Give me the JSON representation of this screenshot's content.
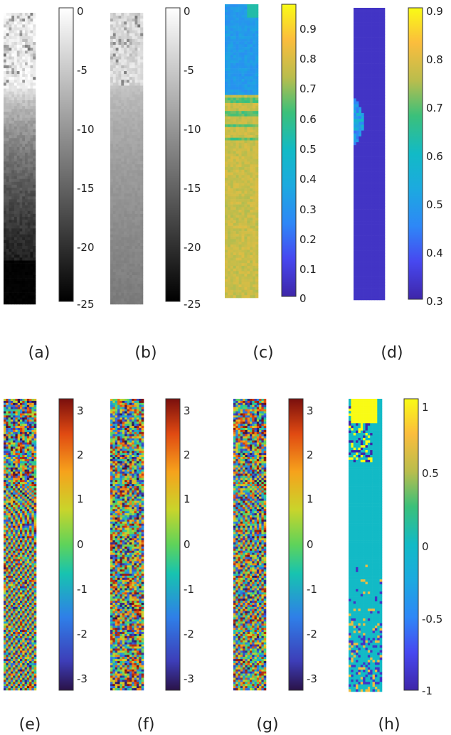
{
  "figure": {
    "panels": [
      {
        "id": "a",
        "label": "(a)",
        "kind": "gray-decay",
        "colormap": "gray",
        "colorbar": {
          "ticks": [
            "0",
            "-5",
            "-10",
            "-15",
            "-20",
            "-25"
          ],
          "range": [
            -25,
            0
          ]
        }
      },
      {
        "id": "b",
        "label": "(b)",
        "kind": "gray-smooth",
        "colormap": "gray",
        "colorbar": {
          "ticks": [
            "0",
            "-5",
            "-10",
            "-15",
            "-20",
            "-25"
          ],
          "range": [
            -25,
            0
          ]
        }
      },
      {
        "id": "c",
        "label": "(c)",
        "kind": "coherence",
        "colormap": "parula",
        "colorbar": {
          "ticks": [
            "0.9",
            "0.8",
            "0.7",
            "0.6",
            "0.5",
            "0.4",
            "0.3",
            "0.2",
            "0.1",
            "0"
          ],
          "range": [
            0,
            0.97
          ]
        }
      },
      {
        "id": "d",
        "label": "(d)",
        "kind": "coherence-est",
        "colormap": "parula",
        "colorbar": {
          "ticks": [
            "0.9",
            "0.8",
            "0.7",
            "0.6",
            "0.5",
            "0.4",
            "0.3"
          ],
          "range": [
            0.3,
            0.9
          ]
        }
      },
      {
        "id": "e",
        "label": "(e)",
        "kind": "fringes-clean",
        "colormap": "phase",
        "colorbar": {
          "ticks": [
            "3",
            "2",
            "1",
            "0",
            "-1",
            "-2",
            "-3"
          ],
          "range": [
            -3.14,
            3.14
          ]
        }
      },
      {
        "id": "f",
        "label": "(f)",
        "kind": "fringes-noisy",
        "colormap": "phase",
        "colorbar": {
          "ticks": [
            "3",
            "2",
            "1",
            "0",
            "-1",
            "-2",
            "-3"
          ],
          "range": [
            -3.14,
            3.14
          ]
        }
      },
      {
        "id": "g",
        "label": "(g)",
        "kind": "fringes-mid",
        "colormap": "phase",
        "colorbar": {
          "ticks": [
            "3",
            "2",
            "1",
            "0",
            "-1",
            "-2",
            "-3"
          ],
          "range": [
            -3.14,
            3.14
          ]
        }
      },
      {
        "id": "h",
        "label": "(h)",
        "kind": "residues",
        "colormap": "parula",
        "colorbar": {
          "ticks": [
            "1",
            "0.5",
            "0",
            "-0.5",
            "-1"
          ],
          "range": [
            -1,
            1
          ]
        }
      }
    ]
  }
}
